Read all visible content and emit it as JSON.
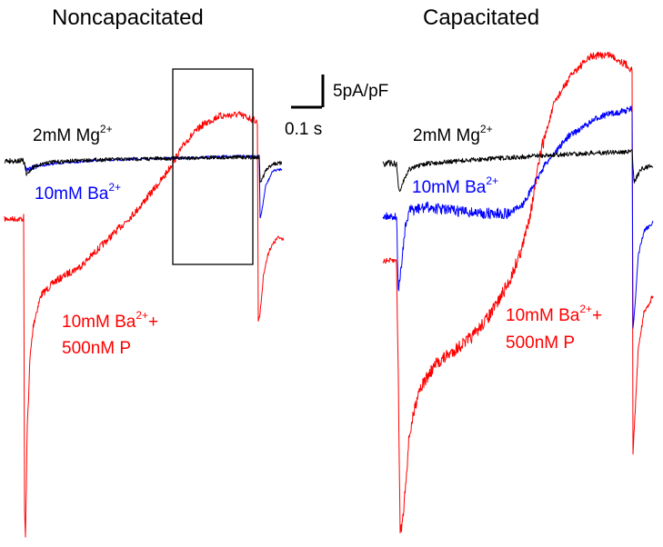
{
  "chart_data": [
    {
      "type": "line",
      "title": "Noncapacitated",
      "series": [
        {
          "name": "2mM Mg2+",
          "label": {
            "main": "2mM Mg",
            "sup": "2+"
          },
          "color": "#000000"
        },
        {
          "name": "10mM Ba2+",
          "label": {
            "main": "10mM Ba",
            "sup": "2+"
          },
          "color": "#0000ff"
        },
        {
          "name": "10mM Ba2+ + 500nM P",
          "label": {
            "main": "10mM Ba",
            "sup": "2+",
            "suffix": "+",
            "line2": "500nM P"
          },
          "color": "#ff0000"
        }
      ],
      "annotation": "rectangle highlighting the late portion of the red trace"
    },
    {
      "type": "line",
      "title": "Capacitated",
      "series": [
        {
          "name": "2mM Mg2+",
          "label": {
            "main": "2mM Mg",
            "sup": "2+"
          },
          "color": "#000000"
        },
        {
          "name": "10mM Ba2+",
          "label": {
            "main": "10mM Ba",
            "sup": "2+"
          },
          "color": "#0000ff"
        },
        {
          "name": "10mM Ba2+ + 500nM P",
          "label": {
            "main": "10mM Ba",
            "sup": "2+",
            "suffix": "+",
            "line2": "500nM P"
          },
          "color": "#ff0000"
        }
      ]
    }
  ],
  "scale_bar": {
    "current": "5pA/pF",
    "time": "0.1 s"
  }
}
